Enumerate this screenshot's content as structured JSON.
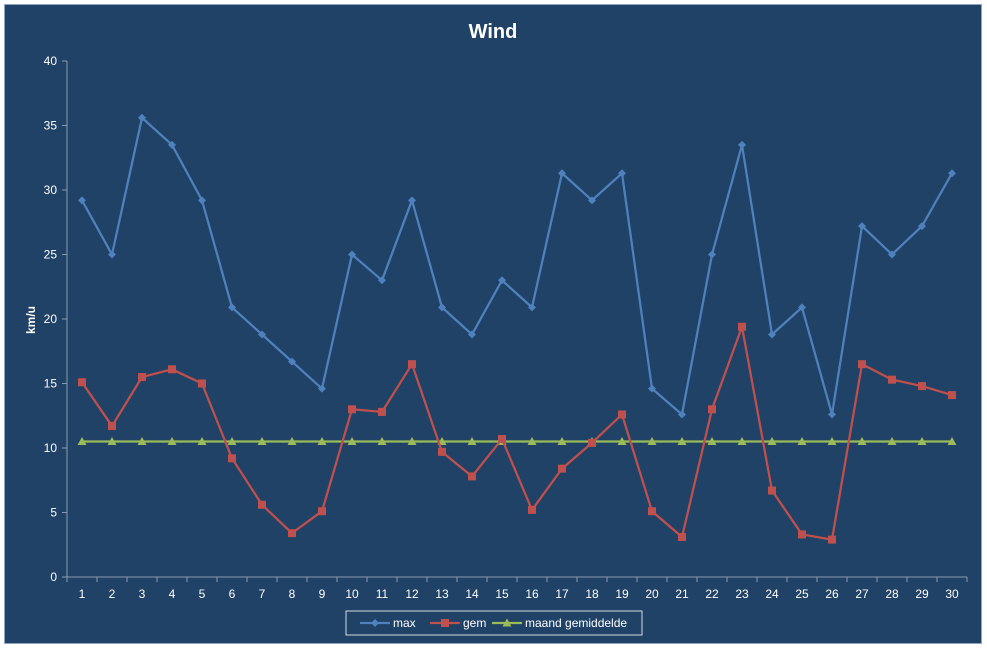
{
  "chart_data": {
    "type": "line",
    "title": "Wind",
    "xlabel": "",
    "ylabel": "km/u",
    "ylim": [
      0,
      40
    ],
    "yticks": [
      0,
      5,
      10,
      15,
      20,
      25,
      30,
      35,
      40
    ],
    "grid": false,
    "legend_position": "bottom",
    "x": [
      "1",
      "2",
      "3",
      "4",
      "5",
      "6",
      "7",
      "8",
      "9",
      "10",
      "11",
      "12",
      "13",
      "14",
      "15",
      "16",
      "17",
      "18",
      "19",
      "20",
      "21",
      "22",
      "23",
      "24",
      "25",
      "26",
      "27",
      "28",
      "29",
      "30"
    ],
    "series": [
      {
        "name": "max",
        "color": "#4f81bd",
        "marker": "diamond",
        "values": [
          29.2,
          25.0,
          35.6,
          33.5,
          29.2,
          20.9,
          18.8,
          16.7,
          14.6,
          25.0,
          23.0,
          29.2,
          20.9,
          18.8,
          23.0,
          20.9,
          31.3,
          29.2,
          31.3,
          14.6,
          12.6,
          25.0,
          33.5,
          18.8,
          20.9,
          12.6,
          27.2,
          25.0,
          27.2,
          31.3
        ]
      },
      {
        "name": "gem",
        "color": "#c0504d",
        "marker": "square",
        "values": [
          15.1,
          11.7,
          15.5,
          16.1,
          15.0,
          9.2,
          5.6,
          3.4,
          5.1,
          13.0,
          12.8,
          16.5,
          9.7,
          7.8,
          10.7,
          5.2,
          8.4,
          10.4,
          12.6,
          5.1,
          3.1,
          13.0,
          19.4,
          6.7,
          3.3,
          2.9,
          16.5,
          15.3,
          14.8,
          14.1
        ]
      },
      {
        "name": "maand gemiddelde",
        "color": "#9bbb59",
        "marker": "triangle",
        "values": [
          10.5,
          10.5,
          10.5,
          10.5,
          10.5,
          10.5,
          10.5,
          10.5,
          10.5,
          10.5,
          10.5,
          10.5,
          10.5,
          10.5,
          10.5,
          10.5,
          10.5,
          10.5,
          10.5,
          10.5,
          10.5,
          10.5,
          10.5,
          10.5,
          10.5,
          10.5,
          10.5,
          10.5,
          10.5,
          10.5
        ]
      }
    ]
  }
}
